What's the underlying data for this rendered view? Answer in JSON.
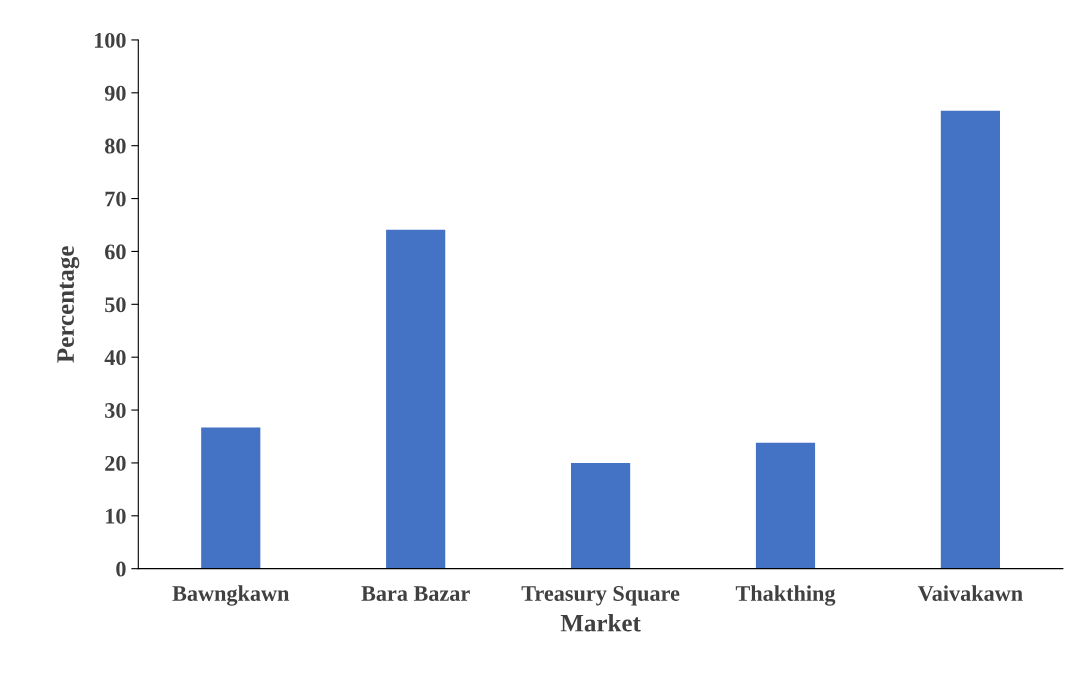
{
  "chart_data": {
    "type": "bar",
    "xlabel": "Market",
    "ylabel": "Percentage",
    "categories": [
      "Bawngkawn",
      "Bara Bazar",
      "Treasury Square",
      "Thakthing",
      "Vaivakawn"
    ],
    "values": [
      26.7,
      64.1,
      20.0,
      23.8,
      86.6
    ],
    "color": "#4472c4",
    "ylim": [
      0,
      100
    ],
    "yticks": [
      0,
      10,
      20,
      30,
      40,
      50,
      60,
      70,
      80,
      90,
      100
    ],
    "grid": false,
    "legend": false
  }
}
